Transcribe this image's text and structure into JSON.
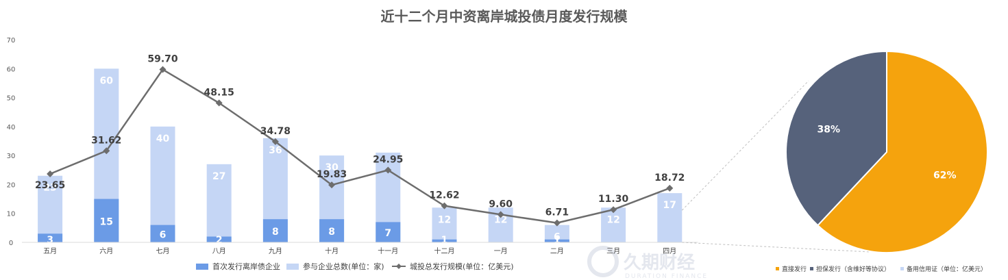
{
  "title": "近十二个月中资离岸城投债月度发行规模",
  "watermark": {
    "text": "久期财经",
    "sub": "DURATION FINANCE"
  },
  "chart_data": [
    {
      "type": "bar",
      "stacked": "overlap",
      "categories": [
        "五月",
        "六月",
        "七月",
        "八月",
        "九月",
        "十月",
        "十一月",
        "十二月",
        "一月",
        "二月",
        "三月",
        "四月"
      ],
      "ylim": [
        0,
        70
      ],
      "yticks": [
        0,
        10,
        20,
        30,
        40,
        50,
        60,
        70
      ],
      "series": [
        {
          "name": "首次发行离岸债企业",
          "kind": "bar",
          "color": "#6b9be6",
          "values": [
            3,
            15,
            6,
            2,
            8,
            8,
            7,
            1,
            0,
            1,
            0,
            0
          ],
          "labels": [
            "3",
            "15",
            "6",
            "2",
            "8",
            "8",
            "7",
            "1",
            "",
            "1",
            "",
            ""
          ]
        },
        {
          "name": "参与企业总数(单位：家)",
          "kind": "bar",
          "color": "#c5d6f5",
          "values": [
            23,
            60,
            40,
            27,
            36,
            30,
            31,
            12,
            12,
            6,
            12,
            17
          ],
          "labels": [
            "23",
            "60",
            "40",
            "27",
            "36",
            "30",
            "",
            "12",
            "12",
            "6",
            "12",
            "17"
          ]
        },
        {
          "name": "城投总发行规模(单位：亿美元)",
          "kind": "line",
          "color": "#6d6d6d",
          "values": [
            23.65,
            31.62,
            59.7,
            48.15,
            34.78,
            19.83,
            24.95,
            12.62,
            9.6,
            6.71,
            11.3,
            18.72
          ],
          "labels": [
            "23.65",
            "31.62",
            "59.70",
            "48.15",
            "34.78",
            "19.83",
            "24.95",
            "12.62",
            "9.60",
            "6.71",
            "11.30",
            "18.72"
          ]
        }
      ],
      "legend": "bottom"
    },
    {
      "type": "pie",
      "slices": [
        {
          "name": "直接发行",
          "value": 62,
          "label": "62%",
          "color": "#f5a30d"
        },
        {
          "name": "担保发行（含维好等协议）",
          "value": 38,
          "label": "38%",
          "color": "#56627b"
        },
        {
          "name": "备用信用证（单位：亿美元）",
          "value": 0,
          "label": "",
          "color": "#c5d6f5"
        }
      ],
      "legend": "bottom"
    }
  ]
}
